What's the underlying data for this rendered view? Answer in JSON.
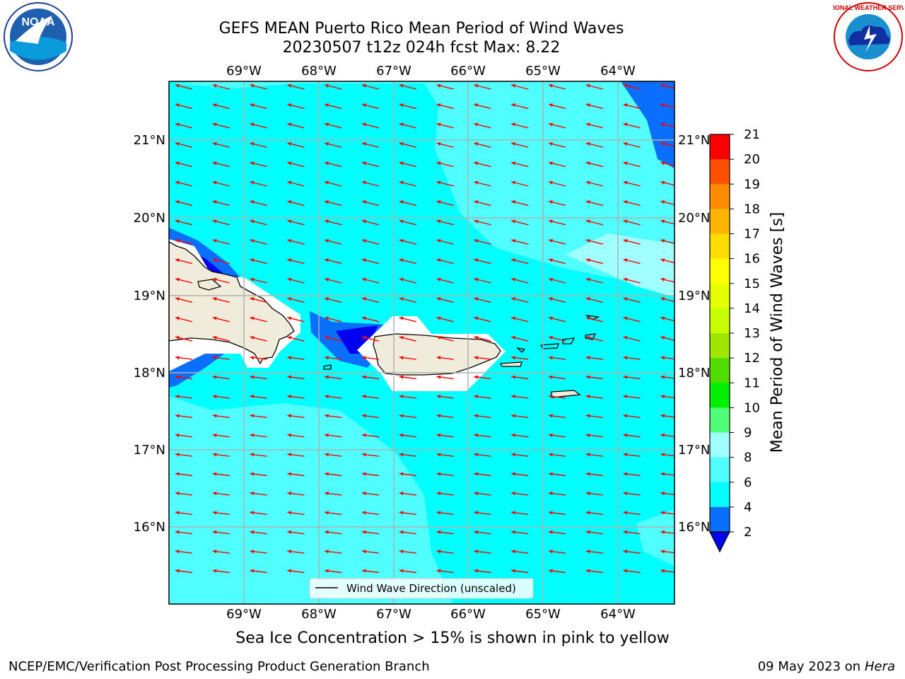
{
  "header": {
    "title_line1": "GEFS MEAN Puerto Rico Mean Period of Wind Waves",
    "title_line2": "20230507 t12z 024h fcst   Max: 8.22"
  },
  "map": {
    "lon_labels": [
      "69°W",
      "68°W",
      "67°W",
      "66°W",
      "65°W",
      "64°W"
    ],
    "lat_labels": [
      "21°N",
      "20°N",
      "19°N",
      "18°N",
      "17°N",
      "16°N"
    ],
    "legend_label": "Wind Wave Direction (unscaled)",
    "arrow_color": "#ff0000",
    "land_color": "#efecdc",
    "grid_color": "#b0b0b0"
  },
  "colorbar": {
    "label": "Mean Period of Wind Waves [s]",
    "ticks": [
      "2",
      "4",
      "6",
      "8",
      "9",
      "10",
      "11",
      "12",
      "13",
      "14",
      "15",
      "16",
      "17",
      "18",
      "19",
      "20",
      "21"
    ],
    "colors": [
      "#0000ee",
      "#0a6eff",
      "#00ffff",
      "#50ffff",
      "#a0ffff",
      "#50ff78",
      "#00ee00",
      "#50dd00",
      "#a0e600",
      "#c8ff00",
      "#e6ff00",
      "#ffff00",
      "#ffdd00",
      "#ffb400",
      "#ff8c00",
      "#ff5000",
      "#ff0000"
    ]
  },
  "notes": {
    "sea_ice": "Sea Ice Concentration > 15% is shown in pink to yellow",
    "branch": "NCEP/EMC/Verification Post Processing Product Generation Branch",
    "date": "09 May 2023 on",
    "host": "Hera"
  },
  "logos": {
    "noaa_text": "NOAA",
    "nws_text": "NATIONAL WEATHER SERVICE"
  }
}
